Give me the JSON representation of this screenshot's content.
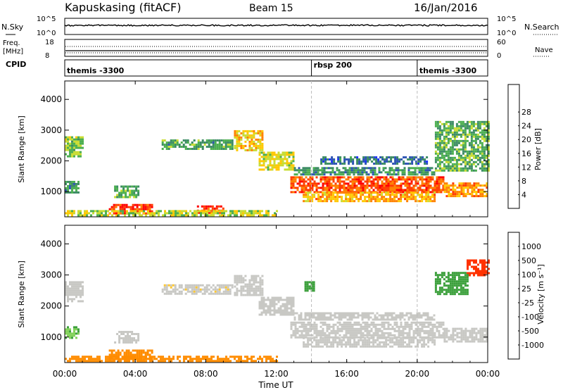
{
  "header": {
    "station": "Kapuskasing (fitACF)",
    "beam": "Beam 15",
    "date": "16/Jan/2016"
  },
  "aux_panels": {
    "nsky": {
      "label": "N.Sky",
      "ticks_left": [
        "10^5",
        "10^0"
      ],
      "ticks_right": [
        "10^5",
        "10^0"
      ],
      "right_label": "N.Search"
    },
    "freq": {
      "label_line1": "Freq.",
      "label_line2": "[MHz]",
      "ticks_left": [
        "18",
        "8"
      ],
      "ticks_right": [
        "60",
        "0"
      ],
      "right_label": "Nave"
    },
    "cpid": {
      "label": "CPID",
      "segments": [
        {
          "name": "themis -3300",
          "start_h": 0,
          "end_h": 14
        },
        {
          "name": "rbsp 200",
          "start_h": 14,
          "end_h": 20
        },
        {
          "name": "themis -3300",
          "start_h": 20,
          "end_h": 24
        }
      ]
    }
  },
  "axes": {
    "xlabel": "Time UT",
    "x_ticks": [
      "00:00",
      "04:00",
      "08:00",
      "12:00",
      "16:00",
      "20:00",
      "00:00"
    ],
    "ylabel_power": "Slant Range [km]",
    "ylabel_velocity": "Slant Range [km]",
    "y_ticks": [
      "1000",
      "2000",
      "3000",
      "4000"
    ]
  },
  "colorbars": {
    "power": {
      "label": "Power [dB]",
      "ticks": [
        "4",
        "8",
        "12",
        "16",
        "20",
        "24",
        "28"
      ],
      "colors": [
        "#1e32ff",
        "#2e55b4",
        "#3c8c64",
        "#4caf50",
        "#c8dc32",
        "#ffc800",
        "#ff8000",
        "#ff3c00",
        "#ff0000"
      ]
    },
    "velocity": {
      "label": "Velocity [m s⁻¹]",
      "ticks": [
        "1000",
        "500",
        "100",
        "25",
        "-25",
        "-100",
        "-500",
        "-1000"
      ],
      "colors": [
        "#1432c8",
        "#3c8cb4",
        "#3ca03c",
        "#82d25a",
        "#c8c8c4",
        "#ffc832",
        "#ff8c00",
        "#ff3200",
        "#e60000"
      ]
    }
  },
  "chart_data": [
    {
      "type": "heatmap",
      "name": "Power",
      "x_range_hours": [
        0,
        24
      ],
      "y_range_km": [
        180,
        4600
      ],
      "value_range_db": [
        0,
        32
      ],
      "regions": [
        {
          "t0": 0.0,
          "t1": 1.0,
          "r0": 2150,
          "r1": 2800,
          "db": 14
        },
        {
          "t0": 0.0,
          "t1": 0.8,
          "r0": 950,
          "r1": 1350,
          "db": 10
        },
        {
          "t0": 2.8,
          "t1": 4.2,
          "r0": 850,
          "r1": 1200,
          "db": 12
        },
        {
          "t0": 2.5,
          "t1": 5.0,
          "r0": 300,
          "r1": 600,
          "db": 28
        },
        {
          "t0": 7.5,
          "t1": 9.0,
          "r0": 300,
          "r1": 550,
          "db": 27
        },
        {
          "t0": 0.0,
          "t1": 12.0,
          "r0": 200,
          "r1": 400,
          "db": 16
        },
        {
          "t0": 5.5,
          "t1": 9.5,
          "r0": 2400,
          "r1": 2700,
          "db": 11
        },
        {
          "t0": 9.6,
          "t1": 11.2,
          "r0": 2350,
          "r1": 3000,
          "db": 19
        },
        {
          "t0": 11.0,
          "t1": 13.0,
          "r0": 1700,
          "r1": 2300,
          "db": 17
        },
        {
          "t0": 12.8,
          "t1": 21.5,
          "r0": 1000,
          "r1": 1500,
          "db": 26
        },
        {
          "t0": 13.5,
          "t1": 21.0,
          "r0": 700,
          "r1": 1000,
          "db": 21
        },
        {
          "t0": 13.0,
          "t1": 21.0,
          "r0": 1550,
          "r1": 1800,
          "db": 10
        },
        {
          "t0": 14.5,
          "t1": 20.5,
          "r0": 1900,
          "r1": 2150,
          "db": 7
        },
        {
          "t0": 21.5,
          "t1": 24.0,
          "r0": 850,
          "r1": 1300,
          "db": 22
        },
        {
          "t0": 21.0,
          "t1": 24.0,
          "r0": 1700,
          "r1": 3300,
          "db": 12
        }
      ]
    },
    {
      "type": "heatmap",
      "name": "Velocity",
      "x_range_hours": [
        0,
        24
      ],
      "y_range_km": [
        180,
        4600
      ],
      "value_range_ms": [
        -1000,
        1000
      ],
      "regions": [
        {
          "t0": 0.0,
          "t1": 1.0,
          "r0": 2150,
          "r1": 2800,
          "vel": 0
        },
        {
          "t0": 0.0,
          "t1": 0.8,
          "r0": 950,
          "r1": 1350,
          "vel": 50
        },
        {
          "t0": 2.8,
          "t1": 4.2,
          "r0": 850,
          "r1": 1200,
          "vel": 0
        },
        {
          "t0": 2.5,
          "t1": 5.0,
          "r0": 300,
          "r1": 600,
          "vel": -80
        },
        {
          "t0": 0.0,
          "t1": 12.0,
          "r0": 200,
          "r1": 400,
          "vel": -100
        },
        {
          "t0": 5.5,
          "t1": 9.5,
          "r0": 2400,
          "r1": 2700,
          "vel": -10
        },
        {
          "t0": 9.6,
          "t1": 11.2,
          "r0": 2350,
          "r1": 3000,
          "vel": 0
        },
        {
          "t0": 11.0,
          "t1": 13.0,
          "r0": 1700,
          "r1": 2300,
          "vel": 0
        },
        {
          "t0": 12.8,
          "t1": 21.5,
          "r0": 1000,
          "r1": 1500,
          "vel": 0
        },
        {
          "t0": 13.5,
          "t1": 21.0,
          "r0": 700,
          "r1": 1000,
          "vel": 0
        },
        {
          "t0": 13.0,
          "t1": 21.0,
          "r0": 1550,
          "r1": 1800,
          "vel": 0
        },
        {
          "t0": 13.6,
          "t1": 14.1,
          "r0": 2500,
          "r1": 2800,
          "vel": 80
        },
        {
          "t0": 21.5,
          "t1": 24.0,
          "r0": 850,
          "r1": 1300,
          "vel": 0
        },
        {
          "t0": 22.8,
          "t1": 24.0,
          "r0": 3000,
          "r1": 3500,
          "vel": -400
        },
        {
          "t0": 21.0,
          "t1": 22.8,
          "r0": 2400,
          "r1": 3100,
          "vel": 120
        }
      ]
    }
  ]
}
